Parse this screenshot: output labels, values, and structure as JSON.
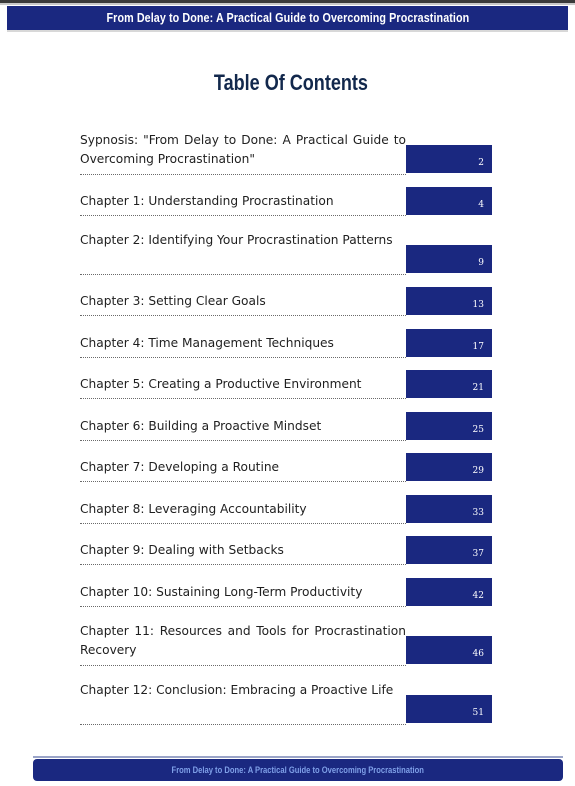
{
  "header": {
    "title": "From Delay to Done: A Practical Guide to Overcoming Procrastination"
  },
  "toc": {
    "heading": "Table Of Contents",
    "entries": [
      {
        "title": "Sypnosis: \"From Delay to Done: A Practical Guide to Overcoming Procrastination\"",
        "page": "2"
      },
      {
        "title": "Chapter 1: Understanding Procrastination",
        "page": "4"
      },
      {
        "title": "Chapter 2: Identifying Your Procrastination Patterns",
        "page": "9"
      },
      {
        "title": "Chapter 3: Setting Clear Goals",
        "page": "13"
      },
      {
        "title": "Chapter 4: Time Management Techniques",
        "page": "17"
      },
      {
        "title": "Chapter 5: Creating a Productive Environment",
        "page": "21"
      },
      {
        "title": "Chapter 6: Building a Proactive Mindset",
        "page": "25"
      },
      {
        "title": "Chapter 7: Developing a Routine",
        "page": "29"
      },
      {
        "title": "Chapter 8: Leveraging Accountability",
        "page": "33"
      },
      {
        "title": "Chapter 9: Dealing with Setbacks",
        "page": "37"
      },
      {
        "title": "Chapter 10: Sustaining Long-Term Productivity",
        "page": "42"
      },
      {
        "title": "Chapter 11: Resources and Tools for Procrastination Recovery",
        "page": "46"
      },
      {
        "title": "Chapter 12: Conclusion: Embracing a Proactive Life",
        "page": "51"
      }
    ]
  },
  "footer": {
    "title": "From Delay to Done: A Practical Guide to Overcoming Procrastination"
  }
}
